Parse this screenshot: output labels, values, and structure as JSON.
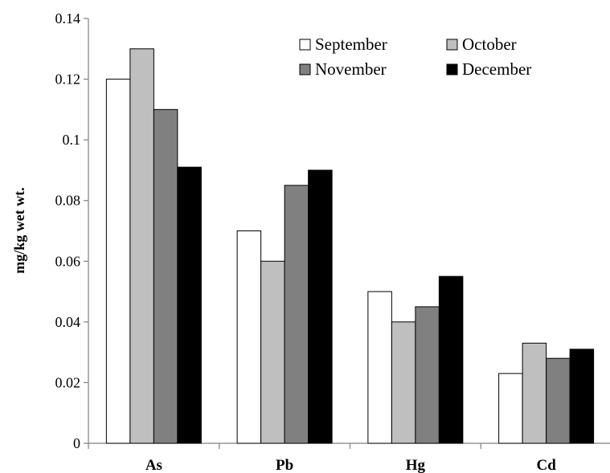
{
  "chart_data": {
    "type": "bar",
    "title": "",
    "xlabel": "",
    "ylabel": "mg/kg wet wt.",
    "ylim": [
      0,
      0.14
    ],
    "yticks": [
      "0",
      "0.02",
      "0.04",
      "0.06",
      "0.08",
      "0.1",
      "0.12",
      "0.14"
    ],
    "categories": [
      "As",
      "Pb",
      "Hg",
      "Cd"
    ],
    "grid": false,
    "legend_position": "top-right",
    "series": [
      {
        "name": "September",
        "color": "#ffffff",
        "values": [
          0.12,
          0.07,
          0.05,
          0.023
        ]
      },
      {
        "name": "October",
        "color": "#bfbfbf",
        "values": [
          0.13,
          0.06,
          0.04,
          0.033
        ]
      },
      {
        "name": "November",
        "color": "#808080",
        "values": [
          0.11,
          0.085,
          0.045,
          0.028
        ]
      },
      {
        "name": "December",
        "color": "#000000",
        "values": [
          0.091,
          0.09,
          0.055,
          0.031
        ]
      }
    ]
  }
}
